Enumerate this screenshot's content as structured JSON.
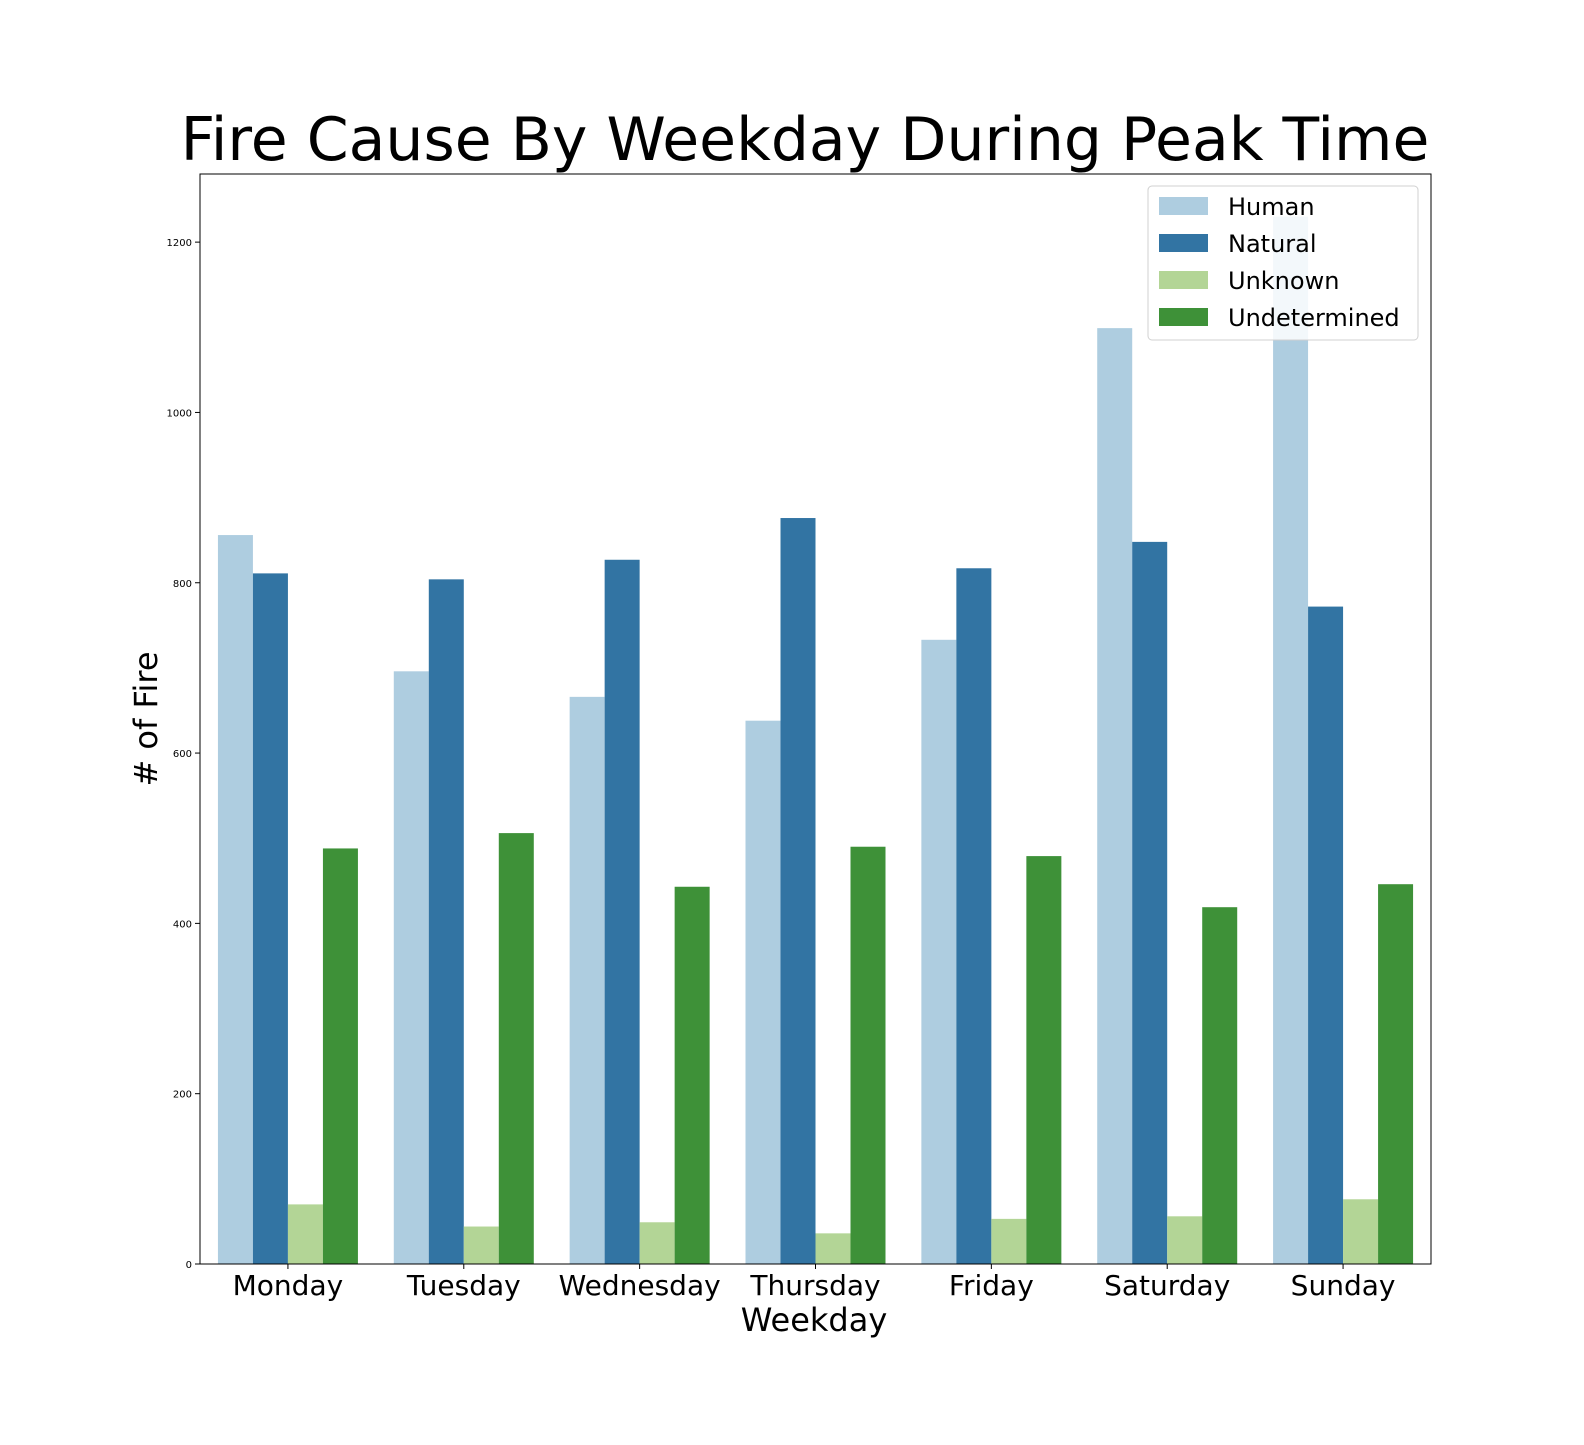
{
  "chart_data": {
    "type": "bar",
    "title": "Fire Cause By Weekday During Peak Time",
    "xlabel": "Weekday",
    "ylabel": "# of Fire",
    "categories": [
      "Monday",
      "Tuesday",
      "Wednesday",
      "Thursday",
      "Friday",
      "Saturday",
      "Sunday"
    ],
    "ylim": [
      0,
      1280
    ],
    "yticks": [
      0,
      200,
      400,
      600,
      800,
      1000,
      1200
    ],
    "grid": false,
    "legend_position": "top-right",
    "series": [
      {
        "name": "Human",
        "color": "#aecde0",
        "values": [
          856,
          696,
          666,
          638,
          733,
          1099,
          1230
        ]
      },
      {
        "name": "Natural",
        "color": "#3274a3",
        "values": [
          811,
          804,
          827,
          876,
          817,
          848,
          772
        ]
      },
      {
        "name": "Unknown",
        "color": "#b3d596",
        "values": [
          70,
          44,
          49,
          36,
          53,
          56,
          76
        ]
      },
      {
        "name": "Undetermined",
        "color": "#3e9138",
        "values": [
          488,
          506,
          443,
          490,
          479,
          419,
          446
        ]
      }
    ]
  }
}
